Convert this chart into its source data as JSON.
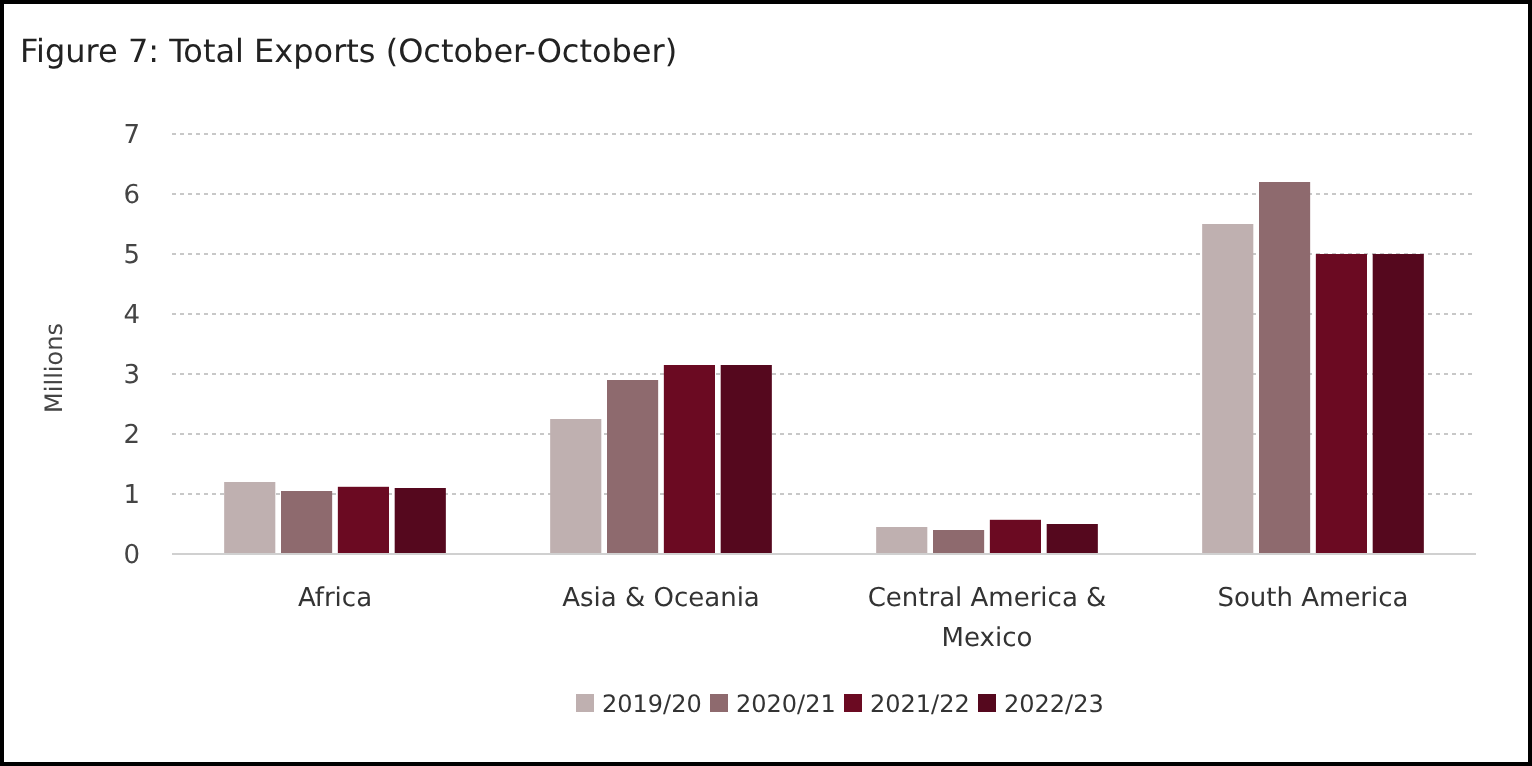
{
  "chart_data": {
    "type": "bar",
    "title": "Figure 7: Total Exports (October-October)",
    "ylabel": "Millions",
    "categories": [
      "Africa",
      "Asia & Oceania",
      "Central America & Mexico",
      "South America"
    ],
    "series": [
      {
        "name": "2019/20",
        "color": "#bfb0b0",
        "values": [
          1.2,
          2.25,
          0.45,
          5.5
        ]
      },
      {
        "name": "2020/21",
        "color": "#8e6a6e",
        "values": [
          1.05,
          2.9,
          0.4,
          6.2
        ]
      },
      {
        "name": "2021/22",
        "color": "#6b0a22",
        "values": [
          1.12,
          3.15,
          0.57,
          5.0
        ]
      },
      {
        "name": "2022/23",
        "color": "#55081e",
        "values": [
          1.1,
          3.15,
          0.5,
          5.0
        ]
      }
    ],
    "ylim": [
      0,
      7
    ],
    "yticks": [
      0,
      1,
      2,
      3,
      4,
      5,
      6,
      7
    ],
    "grid": "y",
    "legend": "bottom"
  }
}
